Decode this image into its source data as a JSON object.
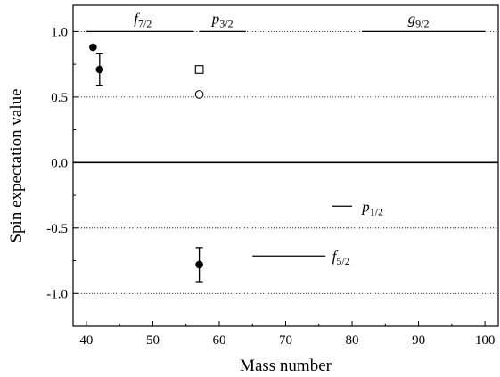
{
  "chart_data": {
    "type": "scatter",
    "title": "",
    "xlabel": "Mass number",
    "ylabel": "Spin expectation value",
    "xlim": [
      38,
      102
    ],
    "ylim": [
      -1.25,
      1.2
    ],
    "x_ticks": [
      40,
      50,
      60,
      70,
      80,
      90,
      100
    ],
    "x_tick_labels": [
      "40",
      "50",
      "60",
      "70",
      "80",
      "90",
      "100"
    ],
    "y_ticks": [
      1.0,
      0.5,
      0.0,
      -0.5,
      -1.0
    ],
    "y_tick_labels": [
      "1.0",
      "0.5",
      "0.0",
      "-0.5",
      "-1.0"
    ],
    "grid": {
      "horizontal_dotted_at": [
        1.0,
        0.5,
        -0.5,
        -1.0
      ],
      "solid_at": [
        0.0
      ]
    },
    "legend": "none",
    "series": [
      {
        "marker": "filled-circle",
        "points": [
          {
            "x": 41,
            "y": 0.88
          },
          {
            "x": 42,
            "y": 0.71,
            "yerr": 0.12
          },
          {
            "x": 57,
            "y": -0.78,
            "yerr": 0.13
          }
        ]
      },
      {
        "marker": "open-square",
        "points": [
          {
            "x": 57,
            "y": 0.71
          }
        ]
      },
      {
        "marker": "open-circle",
        "points": [
          {
            "x": 57,
            "y": 0.52
          }
        ]
      }
    ],
    "shell_orbitals": [
      {
        "base": "f",
        "sub": "7/2",
        "value": 1.0,
        "x_range": [
          40,
          56
        ],
        "label_x": 48.5,
        "label_pos": "above"
      },
      {
        "base": "p",
        "sub": "3/2",
        "value": 1.0,
        "x_range": [
          57,
          64
        ],
        "label_x": 60.5,
        "label_pos": "above"
      },
      {
        "base": "g",
        "sub": "9/2",
        "value": 1.0,
        "x_range": [
          81.5,
          100
        ],
        "label_x": 90,
        "label_pos": "above"
      },
      {
        "base": "p",
        "sub": "1/2",
        "value": -0.333,
        "x_range": [
          77,
          80
        ],
        "label_x": 81.5,
        "label_pos": "right"
      },
      {
        "base": "f",
        "sub": "5/2",
        "value": -0.714,
        "x_range": [
          65,
          76
        ],
        "label_x": 77,
        "label_pos": "right"
      }
    ]
  }
}
